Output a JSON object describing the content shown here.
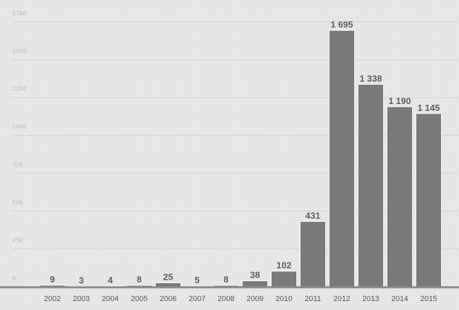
{
  "chart_data": {
    "type": "bar",
    "title": "",
    "xlabel": "",
    "ylabel": "",
    "categories": [
      "2002",
      "2003",
      "2004",
      "2005",
      "2006",
      "2007",
      "2008",
      "2009",
      "2010",
      "2011",
      "2012",
      "2013",
      "2014",
      "2015"
    ],
    "values": [
      9,
      3,
      4,
      8,
      25,
      5,
      8,
      38,
      102,
      431,
      1695,
      1338,
      1190,
      1145
    ],
    "value_labels": [
      "9",
      "3",
      "4",
      "8",
      "25",
      "5",
      "8",
      "38",
      "102",
      "431",
      "1 695",
      "1 338",
      "1 190",
      "1 145"
    ],
    "ylim": [
      0,
      1750
    ],
    "yticks": [
      0,
      250,
      500,
      750,
      1000,
      1250,
      1500,
      1750
    ],
    "ytick_labels": [
      "0",
      "250",
      "500",
      "750",
      "1000",
      "1250",
      "1500",
      "1750"
    ],
    "grid": true,
    "legend": "none",
    "colors": {
      "bar": "#7a7a7a",
      "bar_edge": "#ffffff",
      "grid": "#c8c8c8",
      "baseline": "#8a8a8a",
      "value_text": "#5e5e5e",
      "category_text": "#555555",
      "tick_text": "#b8b8b8"
    }
  }
}
